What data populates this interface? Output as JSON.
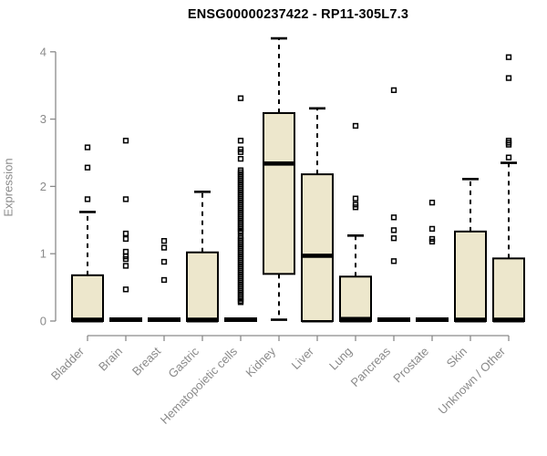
{
  "chart_data": {
    "type": "boxplot",
    "title": "ENSG00000237422 - RP11-305L7.3",
    "ylabel": "Expression",
    "xlabel": "",
    "ylim": [
      0,
      4.2
    ],
    "yticks": [
      0,
      1,
      2,
      3,
      4
    ],
    "grid": false,
    "legend": "none",
    "categories": [
      "Bladder",
      "Brain",
      "Breast",
      "Gastric",
      "Hematopoietic cells",
      "Kidney",
      "Liver",
      "Lung",
      "Pancreas",
      "Prostate",
      "Skin",
      "Unknown / Other"
    ],
    "colors": {
      "box_fill": "#EDE7CC",
      "box_stroke": "#000000",
      "median": "#000000",
      "axis": "#8a8a8a",
      "tick_label": "#8a8a8a",
      "title": "#000000",
      "background": "#ffffff"
    },
    "series": [
      {
        "name": "Bladder",
        "whisker_low": 0,
        "q1": 0,
        "median": 0.02,
        "q3": 0.68,
        "whisker_high": 1.62,
        "outliers": [
          1.81,
          2.28,
          2.58
        ]
      },
      {
        "name": "Brain",
        "whisker_low": 0,
        "q1": 0,
        "median": 0.02,
        "q3": 0.04,
        "whisker_high": 0.04,
        "outliers": [
          0.47,
          0.82,
          0.92,
          0.96,
          1.03,
          1.22,
          1.3,
          1.81,
          2.68
        ]
      },
      {
        "name": "Breast",
        "whisker_low": 0,
        "q1": 0,
        "median": 0.02,
        "q3": 0.04,
        "whisker_high": 0.04,
        "outliers": [
          0.61,
          0.88,
          1.09,
          1.19
        ]
      },
      {
        "name": "Gastric",
        "whisker_low": 0,
        "q1": 0,
        "median": 0.02,
        "q3": 1.02,
        "whisker_high": 1.92,
        "outliers": []
      },
      {
        "name": "Hematopoietic cells",
        "whisker_low": 0,
        "q1": 0,
        "median": 0.02,
        "q3": 0.04,
        "whisker_high": 0.04,
        "outliers": [
          3.31,
          2.68,
          2.55,
          2.51,
          2.41,
          2.24,
          2.21,
          2.18,
          2.15,
          2.12,
          2.09,
          2.06,
          2.03,
          2.0,
          1.97,
          1.94,
          1.91,
          1.88,
          1.85,
          1.82,
          1.79,
          1.76,
          1.73,
          1.7,
          1.67,
          1.64,
          1.61,
          1.58,
          1.55,
          1.52,
          1.49,
          1.46,
          1.43,
          1.4,
          1.37,
          1.34,
          1.32,
          1.26,
          1.23,
          1.2,
          1.17,
          1.14,
          1.11,
          1.08,
          1.05,
          1.02,
          0.99,
          0.96,
          0.93,
          0.9,
          0.87,
          0.84,
          0.81,
          0.78,
          0.75,
          0.72,
          0.69,
          0.66,
          0.63,
          0.6,
          0.57,
          0.54,
          0.51,
          0.48,
          0.45,
          0.42,
          0.39,
          0.36,
          0.33,
          0.3,
          0.28
        ]
      },
      {
        "name": "Kidney",
        "whisker_low": 0.02,
        "q1": 0.7,
        "median": 2.34,
        "q3": 3.09,
        "whisker_high": 4.2,
        "outliers": []
      },
      {
        "name": "Liver",
        "whisker_low": 0,
        "q1": 0,
        "median": 0.97,
        "q3": 2.18,
        "whisker_high": 3.16,
        "outliers": []
      },
      {
        "name": "Lung",
        "whisker_low": 0,
        "q1": 0,
        "median": 0.03,
        "q3": 0.66,
        "whisker_high": 1.27,
        "outliers": [
          1.69,
          1.73,
          1.82,
          2.9
        ]
      },
      {
        "name": "Pancreas",
        "whisker_low": 0,
        "q1": 0,
        "median": 0.02,
        "q3": 0.04,
        "whisker_high": 0.04,
        "outliers": [
          0.89,
          1.23,
          1.35,
          1.54,
          3.43
        ]
      },
      {
        "name": "Prostate",
        "whisker_low": 0,
        "q1": 0,
        "median": 0.02,
        "q3": 0.04,
        "whisker_high": 0.04,
        "outliers": [
          1.18,
          1.22,
          1.37,
          1.76
        ]
      },
      {
        "name": "Skin",
        "whisker_low": 0,
        "q1": 0,
        "median": 0.02,
        "q3": 1.33,
        "whisker_high": 2.11,
        "outliers": []
      },
      {
        "name": "Unknown / Other",
        "whisker_low": 0,
        "q1": 0,
        "median": 0.02,
        "q3": 0.93,
        "whisker_high": 2.35,
        "outliers": [
          2.43,
          2.62,
          2.65,
          2.68,
          3.61,
          3.92
        ]
      }
    ]
  }
}
